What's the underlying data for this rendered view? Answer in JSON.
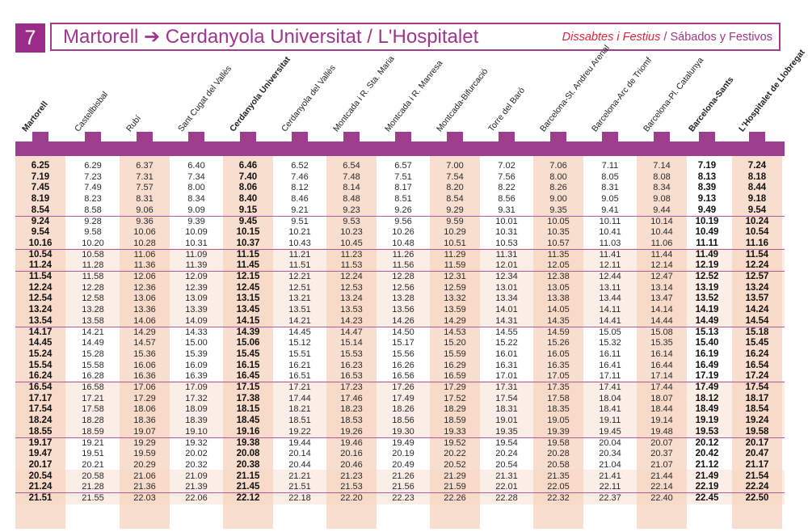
{
  "header": {
    "line_number": "7",
    "route": "Martorell ➔ Cerdanyola Universitat / L'Hospitalet",
    "days_catalan": "Dissabtes i Festius",
    "separator": "/",
    "days_spanish": "Sábados y Festivos"
  },
  "stations": [
    {
      "name": "Martorell",
      "bold": true
    },
    {
      "name": "Castellbisbal",
      "bold": false
    },
    {
      "name": "Rubí",
      "bold": false
    },
    {
      "name": "Sant Cugat del Vallès",
      "bold": false
    },
    {
      "name": "Cerdanyola Universitat",
      "bold": true
    },
    {
      "name": "Cerdanyola del Vallès",
      "bold": false
    },
    {
      "name": "Montcada i R. Sta. Maria",
      "bold": false
    },
    {
      "name": "Montcada i R. Manresa",
      "bold": false
    },
    {
      "name": "Montcada-Bifurcació",
      "bold": false
    },
    {
      "name": "Torre del Baró",
      "bold": false
    },
    {
      "name": "Barcelona-St. Andreu Arenal",
      "bold": false
    },
    {
      "name": "Barcelona-Arc de Triomf",
      "bold": false
    },
    {
      "name": "Barcelona-Pl. Catalunya",
      "bold": false
    },
    {
      "name": "Barcelona-Sants",
      "bold": true
    },
    {
      "name": "L'Hospitalet de Llobregat",
      "bold": true
    }
  ],
  "timetable": [
    [
      "6.25",
      "6.29",
      "6.37",
      "6.40",
      "6.46",
      "6.52",
      "6.54",
      "6.57",
      "7.00",
      "7.02",
      "7.06",
      "7.11",
      "7.14",
      "7.19",
      "7.24"
    ],
    [
      "7.19",
      "7.23",
      "7.31",
      "7.34",
      "7.40",
      "7.46",
      "7.48",
      "7.51",
      "7.54",
      "7.56",
      "8.00",
      "8.05",
      "8.08",
      "8.13",
      "8.18"
    ],
    [
      "7.45",
      "7.49",
      "7.57",
      "8.00",
      "8.06",
      "8.12",
      "8.14",
      "8.17",
      "8.20",
      "8.22",
      "8.26",
      "8.31",
      "8.34",
      "8.39",
      "8.44"
    ],
    [
      "8.19",
      "8.23",
      "8.31",
      "8.34",
      "8.40",
      "8.46",
      "8.48",
      "8.51",
      "8.54",
      "8.56",
      "9.00",
      "9.05",
      "9.08",
      "9.13",
      "9.18"
    ],
    [
      "8.54",
      "8.58",
      "9.06",
      "9.09",
      "9.15",
      "9.21",
      "9.23",
      "9.26",
      "9.29",
      "9.31",
      "9.35",
      "9.41",
      "9.44",
      "9.49",
      "9.54"
    ],
    [
      "9.24",
      "9.28",
      "9.36",
      "9.39",
      "9.45",
      "9.51",
      "9.53",
      "9.56",
      "9.59",
      "10.01",
      "10.05",
      "10.11",
      "10.14",
      "10.19",
      "10.24"
    ],
    [
      "9.54",
      "9.58",
      "10.06",
      "10.09",
      "10.15",
      "10.21",
      "10.23",
      "10.26",
      "10.29",
      "10.31",
      "10.35",
      "10.41",
      "10.44",
      "10.49",
      "10.54"
    ],
    [
      "10.16",
      "10.20",
      "10.28",
      "10.31",
      "10.37",
      "10.43",
      "10.45",
      "10.48",
      "10.51",
      "10.53",
      "10.57",
      "11.03",
      "11.06",
      "11.11",
      "11.16"
    ],
    [
      "10.54",
      "10.58",
      "11.06",
      "11.09",
      "11.15",
      "11.21",
      "11.23",
      "11.26",
      "11.29",
      "11.31",
      "11.35",
      "11.41",
      "11.44",
      "11.49",
      "11.54"
    ],
    [
      "11.24",
      "11.28",
      "11.36",
      "11.39",
      "11.45",
      "11.51",
      "11.53",
      "11.56",
      "11.59",
      "12.01",
      "12.05",
      "12.11",
      "12.14",
      "12.19",
      "12.24"
    ],
    [
      "11.54",
      "11.58",
      "12.06",
      "12.09",
      "12.15",
      "12.21",
      "12.24",
      "12.28",
      "12.31",
      "12.34",
      "12.38",
      "12.44",
      "12.47",
      "12.52",
      "12.57"
    ],
    [
      "12.24",
      "12.28",
      "12.36",
      "12.39",
      "12.45",
      "12.51",
      "12.53",
      "12.56",
      "12.59",
      "13.01",
      "13.05",
      "13.11",
      "13.14",
      "13.19",
      "13.24"
    ],
    [
      "12.54",
      "12.58",
      "13.06",
      "13.09",
      "13.15",
      "13.21",
      "13.24",
      "13.28",
      "13.32",
      "13.34",
      "13.38",
      "13.44",
      "13.47",
      "13.52",
      "13.57"
    ],
    [
      "13.24",
      "13.28",
      "13.36",
      "13.39",
      "13.45",
      "13.51",
      "13.53",
      "13.56",
      "13.59",
      "14.01",
      "14.05",
      "14.11",
      "14.14",
      "14.19",
      "14.24"
    ],
    [
      "13.54",
      "13.58",
      "14.06",
      "14.09",
      "14.15",
      "14.21",
      "14.23",
      "14.26",
      "14.29",
      "14.31",
      "14.35",
      "14.41",
      "14.44",
      "14.49",
      "14.54"
    ],
    [
      "14.17",
      "14.21",
      "14.29",
      "14.33",
      "14.39",
      "14.45",
      "14.47",
      "14.50",
      "14.53",
      "14.55",
      "14.59",
      "15.05",
      "15.08",
      "15.13",
      "15.18"
    ],
    [
      "14.45",
      "14.49",
      "14.57",
      "15.00",
      "15.06",
      "15.12",
      "15.14",
      "15.17",
      "15.20",
      "15.22",
      "15.26",
      "15.32",
      "15.35",
      "15.40",
      "15.45"
    ],
    [
      "15.24",
      "15.28",
      "15.36",
      "15.39",
      "15.45",
      "15.51",
      "15.53",
      "15.56",
      "15.59",
      "16.01",
      "16.05",
      "16.11",
      "16.14",
      "16.19",
      "16.24"
    ],
    [
      "15.54",
      "15.58",
      "16.06",
      "16.09",
      "16.15",
      "16.21",
      "16.23",
      "16.26",
      "16.29",
      "16.31",
      "16.35",
      "16.41",
      "16.44",
      "16.49",
      "16.54"
    ],
    [
      "16.24",
      "16.28",
      "16.36",
      "16.39",
      "16.45",
      "16.51",
      "16.53",
      "16.56",
      "16.59",
      "17.01",
      "17.05",
      "17.11",
      "17.14",
      "17.19",
      "17.24"
    ],
    [
      "16.54",
      "16.58",
      "17.06",
      "17.09",
      "17.15",
      "17.21",
      "17.23",
      "17.26",
      "17.29",
      "17.31",
      "17.35",
      "17.41",
      "17.44",
      "17.49",
      "17.54"
    ],
    [
      "17.17",
      "17.21",
      "17.29",
      "17.32",
      "17.38",
      "17.44",
      "17.46",
      "17.49",
      "17.52",
      "17.54",
      "17.58",
      "18.04",
      "18.07",
      "18.12",
      "18.17"
    ],
    [
      "17.54",
      "17.58",
      "18.06",
      "18.09",
      "18.15",
      "18.21",
      "18.23",
      "18.26",
      "18.29",
      "18.31",
      "18.35",
      "18.41",
      "18.44",
      "18.49",
      "18.54"
    ],
    [
      "18.24",
      "18.28",
      "18.36",
      "18.39",
      "18.45",
      "18.51",
      "18.53",
      "18.56",
      "18.59",
      "19.01",
      "19.05",
      "19.11",
      "19.14",
      "19.19",
      "19.24"
    ],
    [
      "18.55",
      "18.59",
      "19.07",
      "19.10",
      "19.16",
      "19.22",
      "19.26",
      "19.30",
      "19.33",
      "19.35",
      "19.39",
      "19.45",
      "19.48",
      "19.53",
      "19.58"
    ],
    [
      "19.17",
      "19.21",
      "19.29",
      "19.32",
      "19.38",
      "19.44",
      "19.46",
      "19.49",
      "19.52",
      "19.54",
      "19.58",
      "20.04",
      "20.07",
      "20.12",
      "20.17"
    ],
    [
      "19.47",
      "19.51",
      "19.59",
      "20.02",
      "20.08",
      "20.14",
      "20.16",
      "20.19",
      "20.22",
      "20.24",
      "20.28",
      "20.34",
      "20.37",
      "20.42",
      "20.47"
    ],
    [
      "20.17",
      "20.21",
      "20.29",
      "20.32",
      "20.38",
      "20.44",
      "20.46",
      "20.49",
      "20.52",
      "20.54",
      "20.58",
      "21.04",
      "21.07",
      "21.12",
      "21.17"
    ],
    [
      "20.54",
      "20.58",
      "21.06",
      "21.09",
      "21.15",
      "21.21",
      "21.23",
      "21.26",
      "21.29",
      "21.31",
      "21.35",
      "21.41",
      "21.44",
      "21.49",
      "21.54"
    ],
    [
      "21.24",
      "21.28",
      "21.36",
      "21.39",
      "21.45",
      "21.51",
      "21.53",
      "21.56",
      "21.59",
      "22.01",
      "22.05",
      "22.11",
      "22.14",
      "22.19",
      "22.24"
    ],
    [
      "21.51",
      "21.55",
      "22.03",
      "22.06",
      "22.12",
      "22.18",
      "22.20",
      "22.23",
      "22.26",
      "22.28",
      "22.32",
      "22.37",
      "22.40",
      "22.45",
      "22.50"
    ]
  ],
  "colors": {
    "brand_purple": "#9c3d8e",
    "festive_red": "#e0243a",
    "column_shade": "#f6d3bd",
    "zone_shade": "#fbeee6"
  }
}
